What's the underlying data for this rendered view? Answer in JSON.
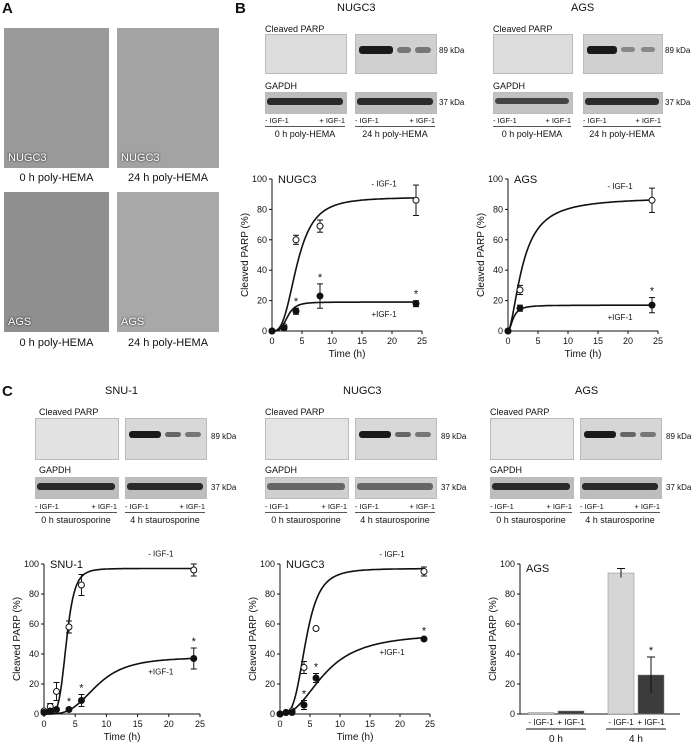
{
  "panelA": {
    "label": "A",
    "images": [
      {
        "overlay": "NUGC3",
        "caption": "0 h poly-HEMA"
      },
      {
        "overlay": "NUGC3",
        "caption": "24 h poly-HEMA"
      },
      {
        "overlay": "AGS",
        "caption": "0 h poly-HEMA"
      },
      {
        "overlay": "AGS",
        "caption": "24 h poly-HEMA"
      }
    ]
  },
  "panelB": {
    "label": "B",
    "blots": [
      {
        "title": "NUGC3",
        "band1": "Cleaved PARP",
        "band2": "GAPDH",
        "kda1": "89 kDa",
        "kda2": "37 kDa",
        "lanes": [
          "- IGF-1",
          "+ IGF-1",
          "- IGF-1",
          "+ IGF-1"
        ],
        "cond1": "0 h poly-HEMA",
        "cond2": "24 h poly-HEMA"
      },
      {
        "title": "AGS",
        "band1": "Cleaved PARP",
        "band2": "GAPDH",
        "kda1": "89 kDa",
        "kda2": "37 kDa",
        "lanes": [
          "- IGF-1",
          "+ IGF-1",
          "- IGF-1",
          "+ IGF-1"
        ],
        "cond1": "0 h poly-HEMA",
        "cond2": "24 h poly-HEMA"
      }
    ]
  },
  "panelC": {
    "label": "C",
    "blots": [
      {
        "title": "SNU-1",
        "band1": "Cleaved PARP",
        "band2": "GAPDH",
        "kda1": "89 kDa",
        "kda2": "37 kDa",
        "lanes": [
          "- IGF-1",
          "+ IGF-1",
          "- IGF-1",
          "+ IGF-1"
        ],
        "cond1": "0 h staurosporine",
        "cond2": "4 h staurosporine"
      },
      {
        "title": "NUGC3",
        "band1": "Cleaved PARP",
        "band2": "GAPDH",
        "kda1": "89 kDa",
        "kda2": "37 kDa",
        "lanes": [
          "- IGF-1",
          "+ IGF-1",
          "- IGF-1",
          "+ IGF-1"
        ],
        "cond1": "0 h staurosporine",
        "cond2": "4 h staurosporine"
      },
      {
        "title": "AGS",
        "band1": "Cleaved PARP",
        "band2": "GAPDH",
        "kda1": "89 kDa",
        "kda2": "37 kDa",
        "lanes": [
          "- IGF-1",
          "+ IGF-1",
          "- IGF-1",
          "+ IGF-1"
        ],
        "cond1": "0 h staurosporine",
        "cond2": "4 h staurosporine"
      }
    ]
  },
  "chart_data": [
    {
      "type": "line",
      "title": "NUGC3",
      "xlabel": "Time (h)",
      "ylabel": "Cleaved PARP (%)",
      "xlim": [
        0,
        25
      ],
      "ylim": [
        0,
        100
      ],
      "xticks": [
        0,
        5,
        10,
        15,
        20,
        25
      ],
      "yticks": [
        0,
        20,
        40,
        60,
        80,
        100
      ],
      "series": [
        {
          "name": "- IGF-1",
          "x": [
            0,
            2,
            4,
            8,
            24
          ],
          "y": [
            0,
            3,
            60,
            69,
            86
          ],
          "err": [
            0,
            1,
            3,
            4,
            10
          ],
          "marker": "open",
          "sig": []
        },
        {
          "name": "+IGF-1",
          "x": [
            0,
            2,
            4,
            8,
            24
          ],
          "y": [
            0,
            2,
            13,
            23,
            18
          ],
          "err": [
            0,
            1,
            2,
            8,
            2
          ],
          "marker": "filled",
          "sig": [
            4,
            8,
            24
          ]
        }
      ]
    },
    {
      "type": "line",
      "title": "AGS",
      "xlabel": "Time (h)",
      "ylabel": "Cleaved PARP (%)",
      "xlim": [
        0,
        25
      ],
      "ylim": [
        0,
        100
      ],
      "xticks": [
        0,
        5,
        10,
        15,
        20,
        25
      ],
      "yticks": [
        0,
        20,
        40,
        60,
        80,
        100
      ],
      "series": [
        {
          "name": "- IGF-1",
          "x": [
            0,
            2,
            24
          ],
          "y": [
            0,
            27,
            86
          ],
          "err": [
            0,
            3,
            8
          ],
          "marker": "open",
          "sig": []
        },
        {
          "name": "+IGF-1",
          "x": [
            0,
            2,
            24
          ],
          "y": [
            0,
            15,
            17
          ],
          "err": [
            0,
            2,
            5
          ],
          "marker": "filled",
          "sig": [
            24
          ]
        }
      ]
    },
    {
      "type": "line",
      "title": "SNU-1",
      "xlabel": "Time (h)",
      "ylabel": "Cleaved PARP (%)",
      "xlim": [
        0,
        25
      ],
      "ylim": [
        0,
        100
      ],
      "xticks": [
        0,
        5,
        10,
        15,
        20,
        25
      ],
      "yticks": [
        0,
        20,
        40,
        60,
        80,
        100
      ],
      "series": [
        {
          "name": "- IGF-1",
          "x": [
            0,
            1,
            2,
            4,
            6,
            24
          ],
          "y": [
            2,
            5,
            15,
            58,
            86,
            96
          ],
          "err": [
            1,
            2,
            6,
            4,
            7,
            4
          ],
          "marker": "open",
          "sig": []
        },
        {
          "name": "+IGF-1",
          "x": [
            0,
            1,
            2,
            4,
            6,
            24
          ],
          "y": [
            1,
            2,
            3,
            3,
            9,
            37
          ],
          "err": [
            0,
            1,
            1,
            1,
            4,
            7
          ],
          "marker": "filled",
          "sig": [
            4,
            6,
            24
          ]
        }
      ]
    },
    {
      "type": "line",
      "title": "NUGC3",
      "xlabel": "Time (h)",
      "ylabel": "Cleaved PARP (%)",
      "xlim": [
        0,
        25
      ],
      "ylim": [
        0,
        100
      ],
      "xticks": [
        0,
        5,
        10,
        15,
        20,
        25
      ],
      "yticks": [
        0,
        20,
        40,
        60,
        80,
        100
      ],
      "series": [
        {
          "name": "- IGF-1",
          "x": [
            0,
            1,
            2,
            4,
            6,
            24
          ],
          "y": [
            0,
            1,
            2,
            31,
            57,
            95
          ],
          "err": [
            0,
            0,
            1,
            4,
            1,
            3
          ],
          "marker": "open",
          "sig": []
        },
        {
          "name": "+IGF-1",
          "x": [
            0,
            1,
            2,
            4,
            6,
            24
          ],
          "y": [
            0,
            1,
            1,
            6,
            24,
            50
          ],
          "err": [
            0,
            0,
            1,
            3,
            3,
            1
          ],
          "marker": "filled",
          "sig": [
            4,
            6,
            24
          ]
        }
      ]
    },
    {
      "type": "bar",
      "title": "AGS",
      "ylabel": "Cleaved PARP (%)",
      "ylim": [
        0,
        100
      ],
      "yticks": [
        0,
        20,
        40,
        60,
        80,
        100
      ],
      "groups": [
        "0 h",
        "4 h"
      ],
      "categories": [
        "- IGF-1",
        "+ IGF-1"
      ],
      "values": [
        [
          1,
          2
        ],
        [
          94,
          26
        ]
      ],
      "err": [
        [
          0,
          0
        ],
        [
          3,
          12
        ]
      ],
      "colors": [
        "#d6d6d6",
        "#3c3c3c"
      ],
      "sig": [
        [
          false,
          false
        ],
        [
          false,
          true
        ]
      ]
    }
  ]
}
